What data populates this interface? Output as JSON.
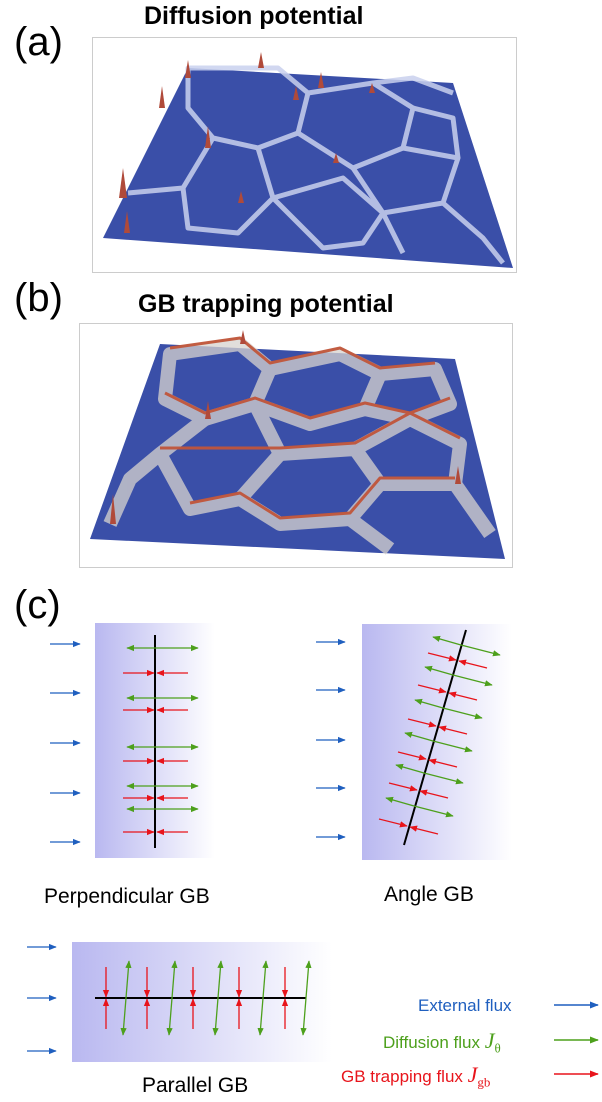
{
  "panels": {
    "a": {
      "letter": "(a)",
      "title": "Diffusion potential"
    },
    "b": {
      "letter": "(b)",
      "title": "GB trapping potential"
    },
    "c": {
      "letter": "(c)"
    }
  },
  "diagrams": {
    "perpendicular": {
      "caption": "Perpendicular GB"
    },
    "angle": {
      "caption": "Angle GB"
    },
    "parallel": {
      "caption": "Parallel GB"
    }
  },
  "legend": {
    "external": {
      "label": "External flux",
      "color": "#1f5fbf"
    },
    "diffusion": {
      "label": "Diffusion flux ",
      "symbol": "J",
      "subscript": "θ",
      "color": "#4da01c"
    },
    "trapping": {
      "label": "GB trapping flux ",
      "symbol": "J",
      "subscript": "gb",
      "color": "#e8141b"
    }
  },
  "colors": {
    "surface_blue": "#3a4fa8",
    "peak_red": "#c0553a",
    "gradient_start": "#b9b8f0"
  }
}
